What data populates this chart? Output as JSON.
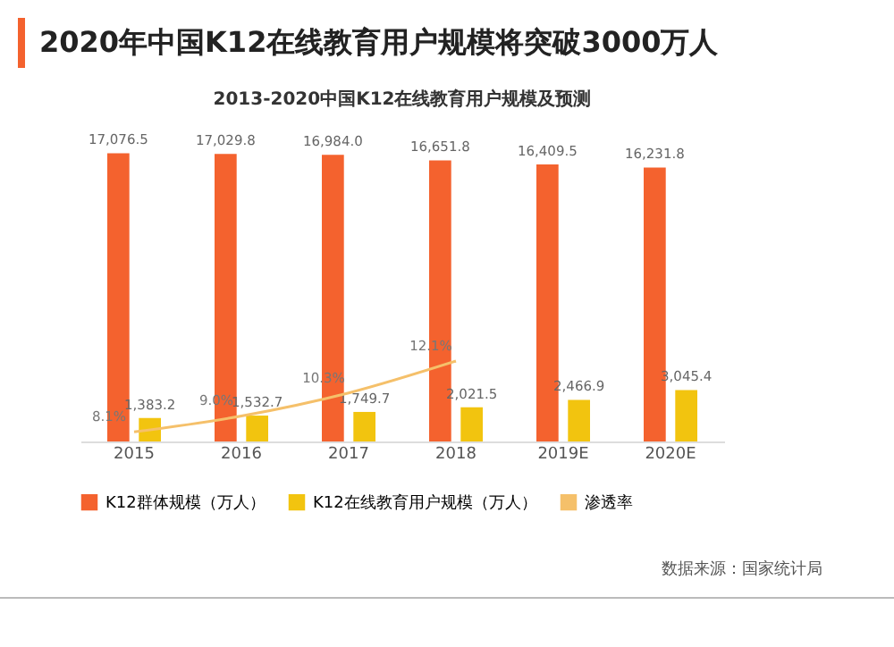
{
  "chart_data": {
    "type": "bar",
    "title": "2020年中国K12在线教育用户规模将突破3000万人",
    "subtitle": "2013-2020中国K12在线教育用户规模及预测",
    "categories": [
      "2015",
      "2016",
      "2017",
      "2018",
      "2019E",
      "2020E"
    ],
    "series": [
      {
        "name": "K12群体规模（万人）",
        "color": "#f4622e",
        "values": [
          17076.5,
          17029.8,
          16984.0,
          16651.8,
          16409.5,
          16231.8
        ],
        "value_labels": [
          "17,076.5",
          "17,029.8",
          "16,984.0",
          "16,651.8",
          "16,409.5",
          "16,231.8"
        ]
      },
      {
        "name": "K12在线教育用户规模（万人）",
        "color": "#f2c40f",
        "values": [
          1383.2,
          1532.7,
          1749.7,
          2021.5,
          2466.9,
          3045.4
        ],
        "value_labels": [
          "1,383.2",
          "1,532.7",
          "1,749.7",
          "2,021.5",
          "2,466.9",
          "3,045.4"
        ]
      },
      {
        "name": "渗透率",
        "type": "line",
        "axis": "y2",
        "color": "#f5c06a",
        "values": [
          8.1,
          9.0,
          10.3,
          12.1,
          null,
          null
        ],
        "value_labels": [
          "8.1%",
          "9.0%",
          "10.3%",
          "12.1%",
          null,
          null
        ]
      }
    ],
    "legend": "bottom",
    "marker": "none",
    "annotations": [
      "数据来源：国家统计局"
    ]
  }
}
